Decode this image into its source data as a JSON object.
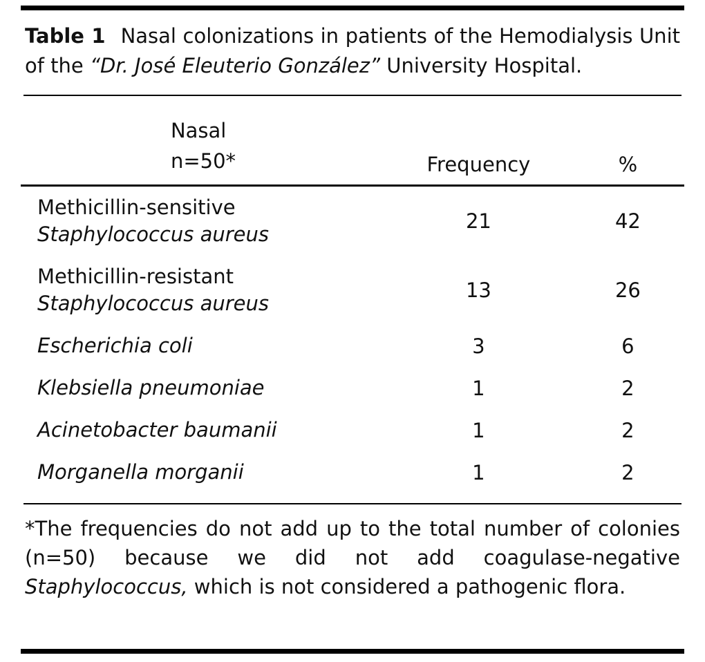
{
  "page": {
    "caption": {
      "label": "Table 1",
      "text": "Nasal colonizations in patients of the Hemodialysis Unit of the ",
      "italic": "“Dr. José Eleuterio González”",
      "text_end": " University Hospital."
    },
    "header": {
      "col1_line1": "Nasal",
      "col1_line2": "n=50*",
      "col2": "Frequency",
      "col3": "%"
    },
    "rows": [
      {
        "line1": "Methicillin-sensitive",
        "line2": "Staphylococcus aureus",
        "frequency": "21",
        "percent": "42"
      },
      {
        "line1": "Methicillin-resistant",
        "line2": "Staphylococcus aureus",
        "frequency": "13",
        "percent": "26"
      },
      {
        "italic_name": "Escherichia coli",
        "frequency": "3",
        "percent": "6"
      },
      {
        "italic_name": "Klebsiella pneumoniae",
        "frequency": "1",
        "percent": "2"
      },
      {
        "italic_name": "Acinetobacter baumanii",
        "frequency": "1",
        "percent": "2"
      },
      {
        "italic_name": "Morganella morganii",
        "frequency": "1",
        "percent": "2"
      }
    ],
    "footnote": {
      "text": "*The frequencies do not add up to the total number of colonies (n=50) because we did not add coagulase-negative ",
      "italic": "Staphylococcus,",
      "text_end": " which is not considered a pathogenic flora."
    },
    "colors": {
      "background": "#ffffff",
      "text": "#111111",
      "rule": "#000000"
    }
  }
}
